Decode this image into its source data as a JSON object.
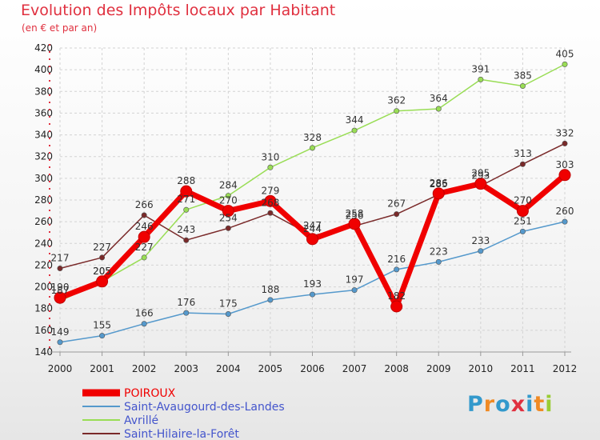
{
  "chart_data": {
    "type": "line",
    "title": "Evolution des Impôts locaux par Habitant",
    "subtitle": "(en € et par an)",
    "x": [
      "2000",
      "2001",
      "2002",
      "2003",
      "2004",
      "2005",
      "2006",
      "2007",
      "2008",
      "2009",
      "2010",
      "2011",
      "2012"
    ],
    "ylim": [
      140,
      420
    ],
    "yticks": [
      140,
      160,
      180,
      200,
      220,
      240,
      260,
      280,
      300,
      320,
      340,
      360,
      380,
      400,
      420
    ],
    "grid": true,
    "legend_position": "bottom-left",
    "series": [
      {
        "name": "POIROUX",
        "color": "#f00000",
        "values": [
          190,
          205,
          246,
          288,
          270,
          279,
          244,
          258,
          182,
          286,
          295,
          270,
          303
        ]
      },
      {
        "name": "Saint-Avaugourd-des-Landes",
        "color": "#5599cc",
        "values": [
          149,
          155,
          166,
          176,
          175,
          188,
          193,
          197,
          216,
          223,
          233,
          251,
          260
        ]
      },
      {
        "name": "Avrillé",
        "color": "#99dd55",
        "values": [
          187,
          205,
          227,
          271,
          284,
          310,
          328,
          344,
          362,
          364,
          391,
          385,
          405
        ]
      },
      {
        "name": "Saint-Hilaire-la-Forêt",
        "color": "#7a2a2a",
        "values": [
          217,
          227,
          266,
          243,
          254,
          268,
          247,
          256,
          267,
          285,
          293,
          313,
          332
        ]
      }
    ]
  },
  "logo": {
    "text": "Proxiti",
    "colors": [
      "#3399cc",
      "#f08a24",
      "#3399cc",
      "#e0303f",
      "#3399cc",
      "#f08a24",
      "#99cc33"
    ]
  }
}
